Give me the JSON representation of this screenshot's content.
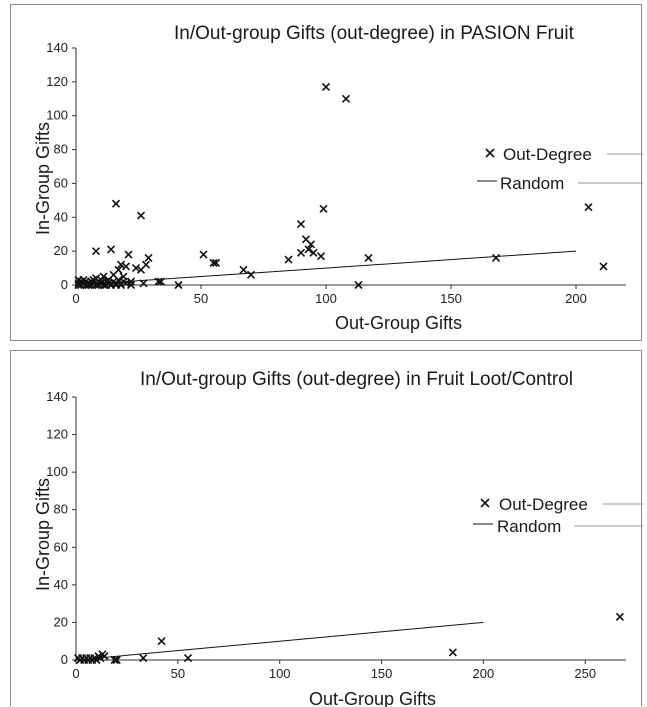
{
  "chart_data": [
    {
      "type": "scatter",
      "title": "In/Out-group Gifts (out-degree) in PASION Fruit",
      "xlabel": "Out-Group Gifts",
      "ylabel": "In-Group Gifts",
      "xlim": [
        0,
        220
      ],
      "ylim": [
        0,
        140
      ],
      "xticks": [
        0,
        50,
        100,
        150,
        200
      ],
      "yticks": [
        0,
        20,
        40,
        60,
        80,
        100,
        120,
        140
      ],
      "grid": false,
      "legend": "right",
      "series": [
        {
          "name": "Out-Degree",
          "kind": "scatter",
          "marker": "x",
          "points": [
            [
              1,
              0
            ],
            [
              1,
              1
            ],
            [
              1,
              3
            ],
            [
              2,
              0
            ],
            [
              2,
              2
            ],
            [
              3,
              1
            ],
            [
              3,
              3
            ],
            [
              4,
              0
            ],
            [
              4,
              2
            ],
            [
              5,
              1
            ],
            [
              5,
              0
            ],
            [
              6,
              2
            ],
            [
              6,
              0
            ],
            [
              7,
              1
            ],
            [
              7,
              3
            ],
            [
              8,
              0
            ],
            [
              8,
              4
            ],
            [
              8,
              20
            ],
            [
              9,
              2
            ],
            [
              9,
              0
            ],
            [
              10,
              1
            ],
            [
              10,
              3
            ],
            [
              11,
              0
            ],
            [
              11,
              5
            ],
            [
              12,
              2
            ],
            [
              12,
              0
            ],
            [
              13,
              1
            ],
            [
              13,
              3
            ],
            [
              14,
              0
            ],
            [
              14,
              21
            ],
            [
              15,
              2
            ],
            [
              15,
              6
            ],
            [
              16,
              0
            ],
            [
              16,
              1
            ],
            [
              16,
              48
            ],
            [
              17,
              3
            ],
            [
              17,
              9
            ],
            [
              18,
              0
            ],
            [
              18,
              12
            ],
            [
              19,
              2
            ],
            [
              19,
              5
            ],
            [
              20,
              1
            ],
            [
              20,
              11
            ],
            [
              21,
              18
            ],
            [
              22,
              0
            ],
            [
              22,
              2
            ],
            [
              24,
              10
            ],
            [
              26,
              9
            ],
            [
              26,
              41
            ],
            [
              27,
              1
            ],
            [
              28,
              12
            ],
            [
              29,
              16
            ],
            [
              33,
              2
            ],
            [
              34,
              2
            ],
            [
              41,
              0
            ],
            [
              51,
              18
            ],
            [
              55,
              13
            ],
            [
              56,
              13
            ],
            [
              67,
              9
            ],
            [
              70,
              6
            ],
            [
              85,
              15
            ],
            [
              90,
              19
            ],
            [
              90,
              36
            ],
            [
              92,
              27
            ],
            [
              93,
              21
            ],
            [
              94,
              24
            ],
            [
              95,
              19
            ],
            [
              98,
              17
            ],
            [
              99,
              45
            ],
            [
              100,
              117
            ],
            [
              108,
              110
            ],
            [
              113,
              0
            ],
            [
              117,
              16
            ],
            [
              168,
              16
            ],
            [
              205,
              46
            ],
            [
              211,
              11
            ]
          ]
        },
        {
          "name": "Random",
          "kind": "line",
          "points": [
            [
              0,
              0
            ],
            [
              200,
              20
            ]
          ]
        }
      ]
    },
    {
      "type": "scatter",
      "title": "In/Out-group Gifts (out-degree) in Fruit Loot/Control",
      "xlabel": "Out-Group Gifts",
      "ylabel": "In-Group Gifts",
      "xlim": [
        0,
        270
      ],
      "ylim": [
        0,
        140
      ],
      "xticks": [
        0,
        50,
        100,
        150,
        200,
        250
      ],
      "yticks": [
        0,
        20,
        40,
        60,
        80,
        100,
        120,
        140
      ],
      "grid": false,
      "legend": "right",
      "series": [
        {
          "name": "Out-Degree",
          "kind": "scatter",
          "marker": "x",
          "points": [
            [
              1,
              1
            ],
            [
              2,
              0
            ],
            [
              3,
              1
            ],
            [
              4,
              0
            ],
            [
              5,
              1
            ],
            [
              6,
              0
            ],
            [
              7,
              1
            ],
            [
              8,
              0
            ],
            [
              9,
              1
            ],
            [
              10,
              0
            ],
            [
              11,
              2
            ],
            [
              12,
              1
            ],
            [
              13,
              3
            ],
            [
              14,
              2
            ],
            [
              19,
              0
            ],
            [
              20,
              0
            ],
            [
              33,
              1
            ],
            [
              42,
              10
            ],
            [
              55,
              1
            ],
            [
              185,
              4
            ],
            [
              267,
              23
            ]
          ]
        },
        {
          "name": "Random",
          "kind": "line",
          "points": [
            [
              0,
              0
            ],
            [
              200,
              20
            ]
          ]
        }
      ]
    }
  ]
}
